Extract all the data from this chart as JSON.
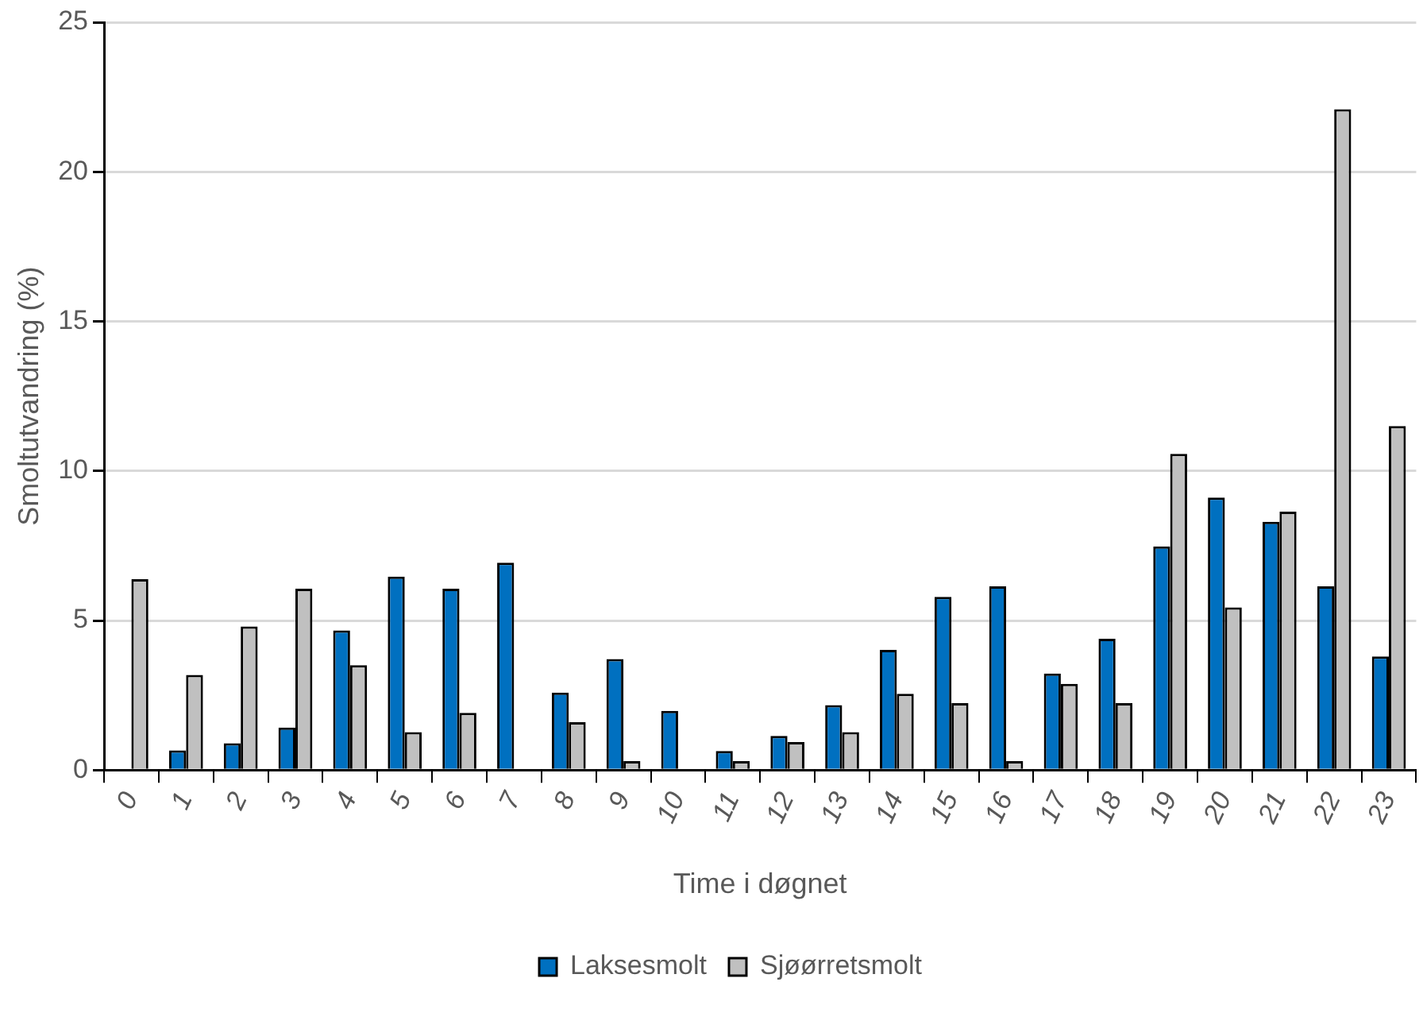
{
  "chart_data": {
    "type": "bar",
    "xlabel": "Time i døgnet",
    "ylabel": "Smoltutvandring (%)",
    "categories": [
      "0",
      "1",
      "2",
      "3",
      "4",
      "5",
      "6",
      "7",
      "8",
      "9",
      "10",
      "11",
      "12",
      "13",
      "14",
      "15",
      "16",
      "17",
      "18",
      "19",
      "20",
      "21",
      "22",
      "23"
    ],
    "series": [
      {
        "name": "Laksesmolt",
        "color": "#0070c0",
        "values": [
          0,
          0.66,
          0.9,
          1.42,
          4.67,
          6.47,
          6.06,
          6.93,
          2.59,
          3.71,
          1.98,
          0.64,
          1.14,
          2.17,
          4.02,
          5.79,
          6.14,
          3.23,
          4.39,
          7.48,
          9.11,
          8.3,
          6.14,
          3.8
        ]
      },
      {
        "name": "Sjøørretsmolt",
        "color": "#c0c0c0",
        "values": [
          6.38,
          3.18,
          4.8,
          6.06,
          3.51,
          1.27,
          1.91,
          0,
          1.6,
          0.3,
          0,
          0.3,
          0.94,
          1.27,
          2.55,
          2.24,
          0.3,
          2.88,
          2.24,
          10.57,
          5.44,
          8.64,
          22.09,
          11.5
        ]
      }
    ],
    "ylim": [
      0,
      25
    ],
    "yticks": [
      0,
      5,
      10,
      15,
      20,
      25
    ],
    "grid": "y",
    "legend": "bottom"
  }
}
